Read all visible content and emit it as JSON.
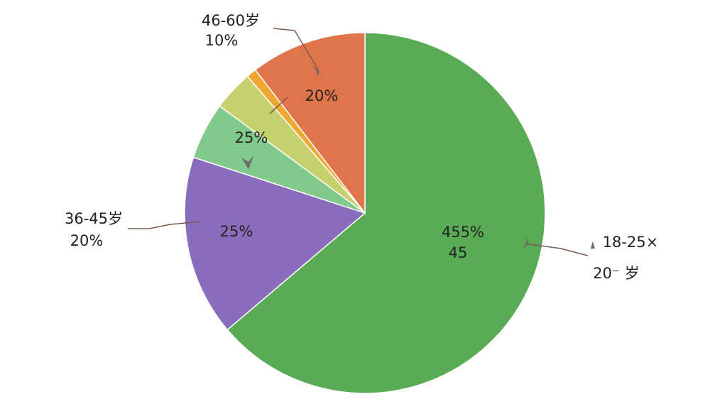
{
  "chart_data": {
    "type": "pie",
    "categories": [
      "18-25×",
      "36-45岁",
      null,
      null,
      null,
      "46-60岁"
    ],
    "values": [
      63.8,
      16.2,
      5.1,
      3.6,
      0.9,
      10.4
    ],
    "colors": [
      "#5aab55",
      "#8a6cbd",
      "#82c98c",
      "#c6d06c",
      "#f0a832",
      "#e0744a"
    ],
    "annotations": [
      "455%",
      "45",
      "25%",
      "25%",
      "20%",
      "20⁻ 岁",
      "20%",
      "10%"
    ]
  }
}
